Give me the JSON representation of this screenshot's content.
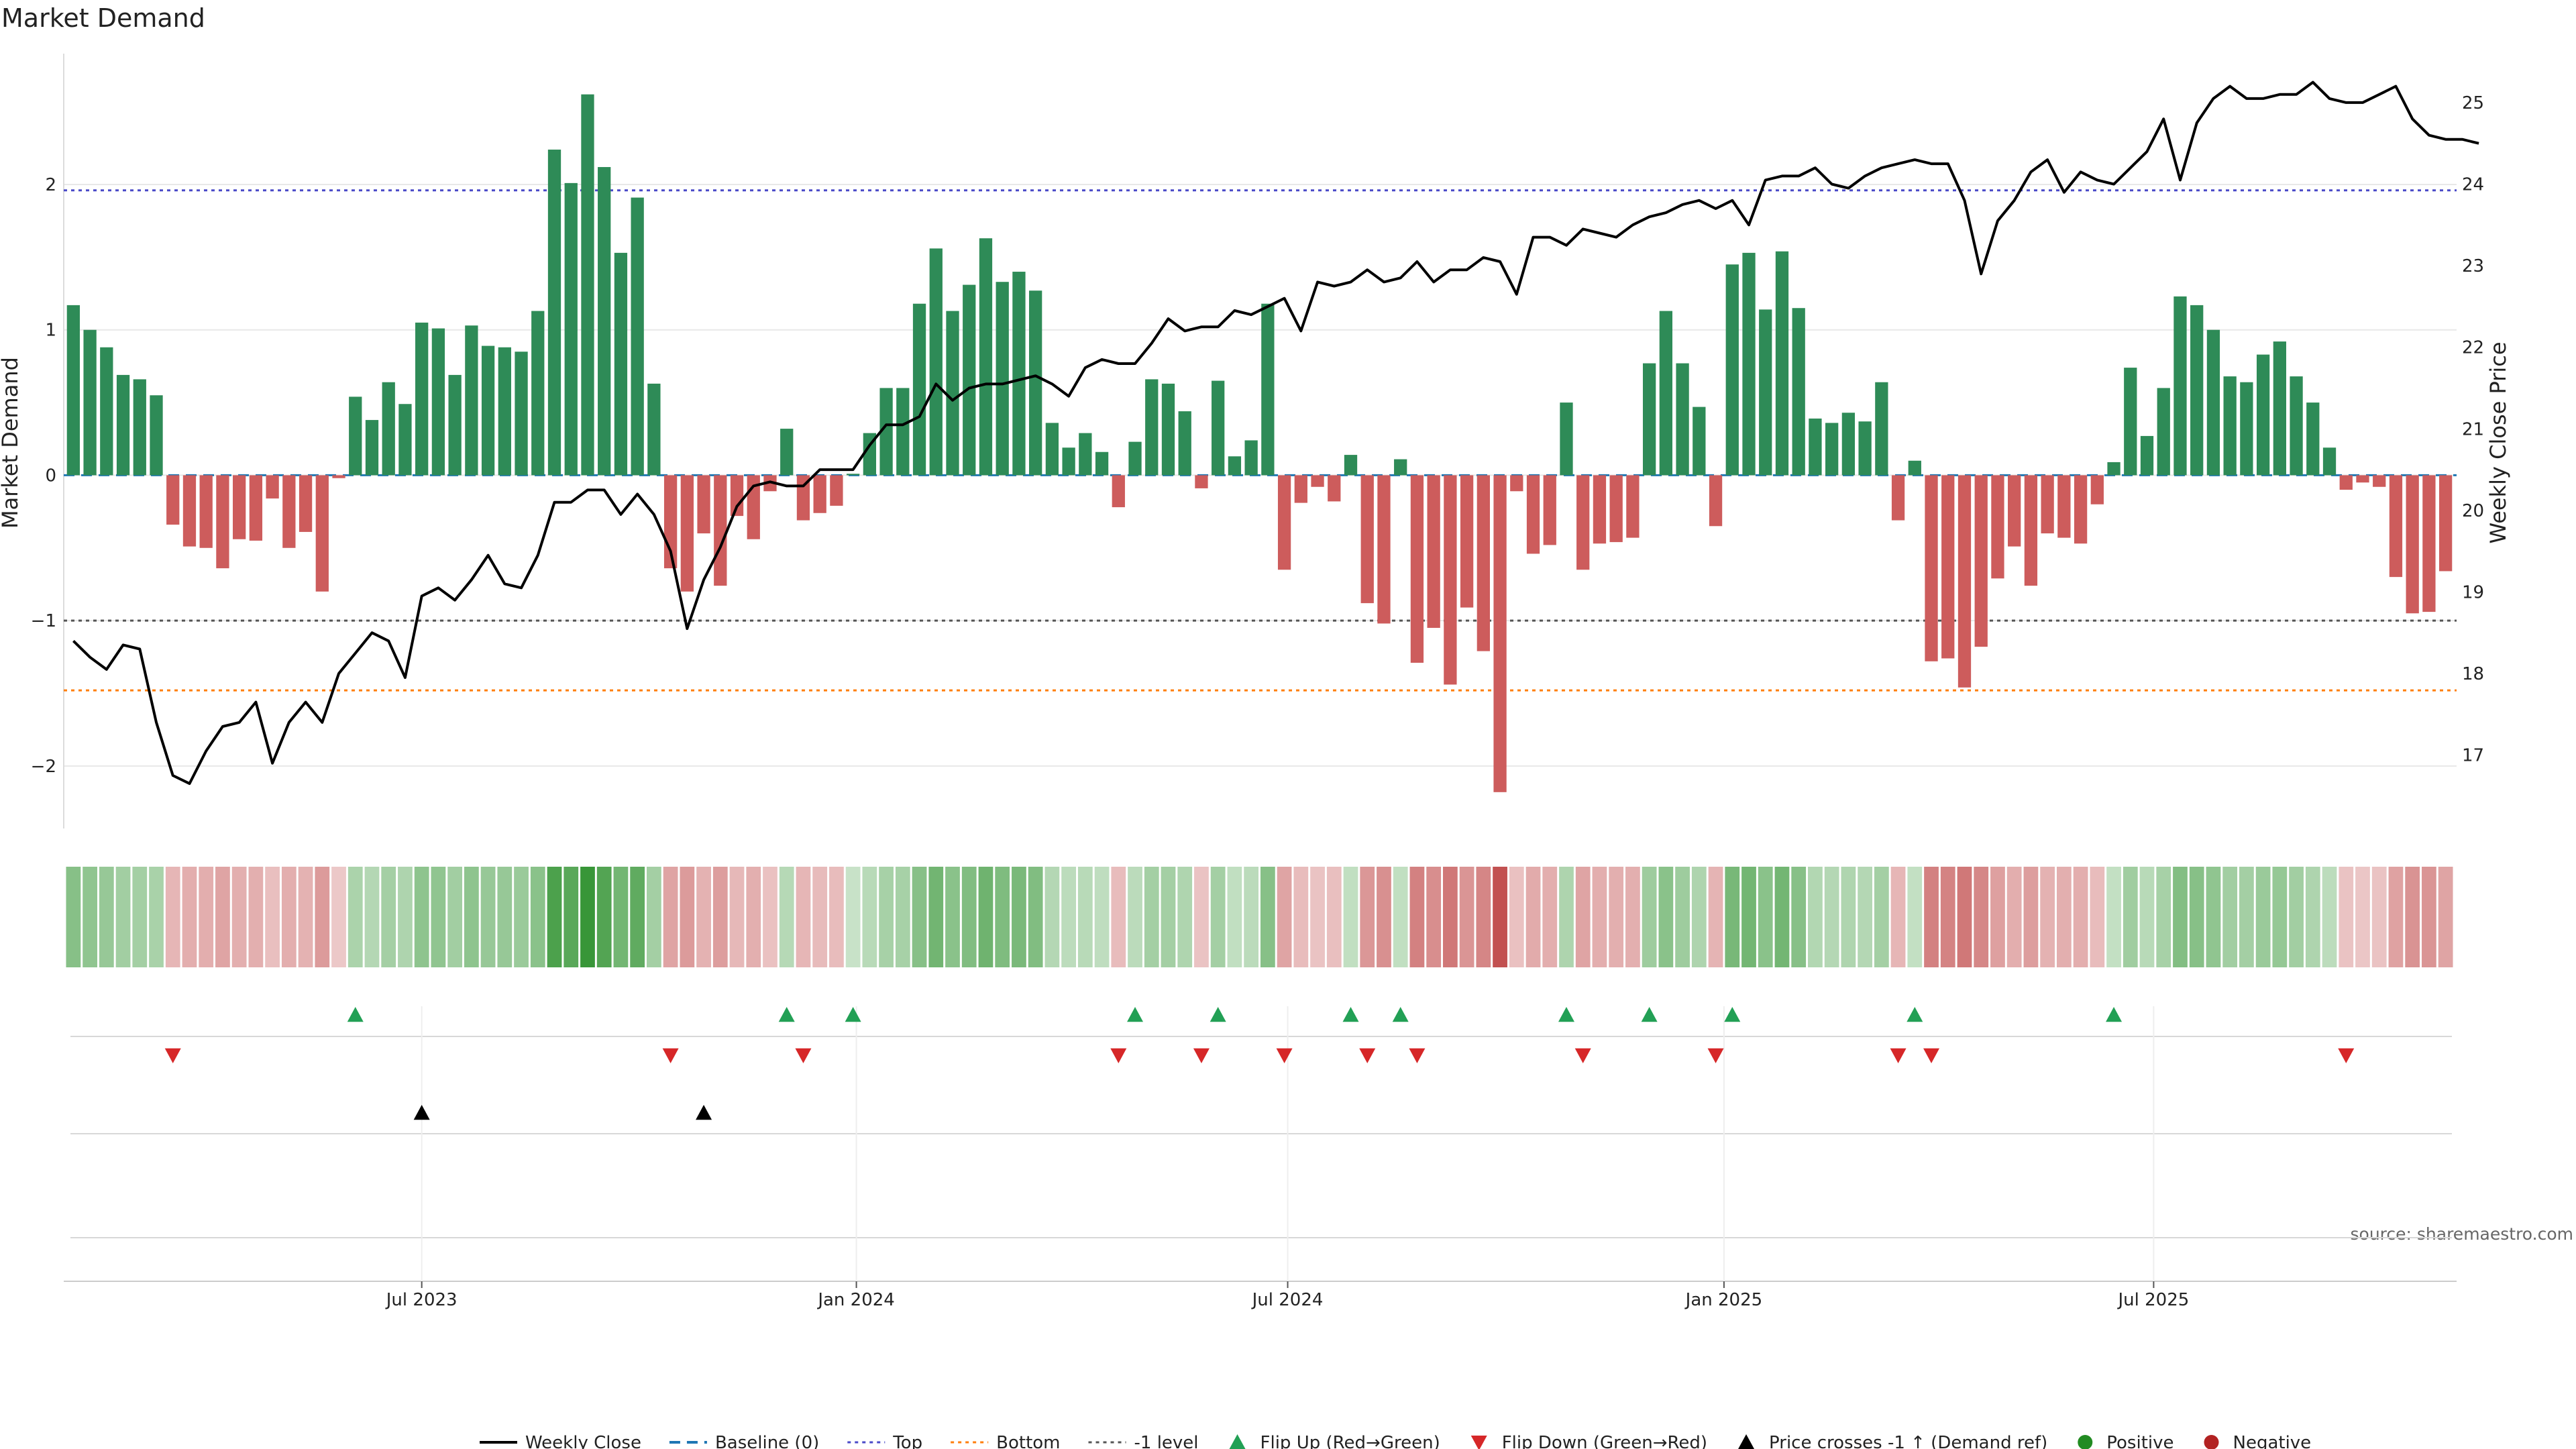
{
  "chart_data": {
    "type": "bar",
    "title": "Market Demand",
    "ylabel_left": "Market Demand",
    "ylabel_right": "Weekly Close Price",
    "source": "source: sharemaestro.com",
    "ylim_left": [
      -2.43,
      2.9
    ],
    "ylim_right": [
      16.1,
      25.6
    ],
    "left_ticks": [
      {
        "v": 2,
        "label": "2"
      },
      {
        "v": 1,
        "label": "1"
      },
      {
        "v": 0,
        "label": "0"
      },
      {
        "v": -1,
        "label": "−1"
      },
      {
        "v": -2,
        "label": "−2"
      }
    ],
    "right_ticks": [
      {
        "v": 25,
        "label": "25"
      },
      {
        "v": 24,
        "label": "24"
      },
      {
        "v": 23,
        "label": "23"
      },
      {
        "v": 22,
        "label": "22"
      },
      {
        "v": 21,
        "label": "21"
      },
      {
        "v": 20,
        "label": "20"
      },
      {
        "v": 19,
        "label": "19"
      },
      {
        "v": 18,
        "label": "18"
      },
      {
        "v": 17,
        "label": "17"
      }
    ],
    "date_ticks": [
      {
        "week": 21.5,
        "label": "Jul 2023"
      },
      {
        "week": 47.7,
        "label": "Jan 2024"
      },
      {
        "week": 73.7,
        "label": "Jul 2024"
      },
      {
        "week": 100,
        "label": "Jan 2025"
      },
      {
        "week": 125.9,
        "label": "Jul 2025"
      }
    ],
    "reference_lines": {
      "top": 1.96,
      "bottom": -1.48,
      "minus_one": -1.0,
      "baseline": 0
    },
    "demand": [
      1.17,
      1.0,
      0.88,
      0.69,
      0.66,
      0.55,
      -0.34,
      -0.49,
      -0.5,
      -0.64,
      -0.44,
      -0.45,
      -0.16,
      -0.5,
      -0.39,
      -0.8,
      -0.02,
      0.54,
      0.38,
      0.64,
      0.49,
      1.05,
      1.01,
      0.69,
      1.03,
      0.89,
      0.88,
      0.85,
      1.13,
      2.24,
      2.01,
      2.62,
      2.12,
      1.53,
      1.91,
      0.63,
      -0.64,
      -0.8,
      -0.4,
      -0.76,
      -0.28,
      -0.44,
      -0.11,
      0.32,
      -0.31,
      -0.26,
      -0.21,
      0.01,
      0.29,
      0.6,
      0.6,
      1.18,
      1.56,
      1.13,
      1.31,
      1.63,
      1.33,
      1.4,
      1.27,
      0.36,
      0.19,
      0.29,
      0.16,
      -0.22,
      0.23,
      0.66,
      0.63,
      0.44,
      -0.09,
      0.65,
      0.13,
      0.24,
      1.18,
      -0.65,
      -0.19,
      -0.08,
      -0.18,
      0.14,
      -0.88,
      -1.02,
      0.11,
      -1.29,
      -1.05,
      -1.44,
      -0.91,
      -1.21,
      -2.18,
      -0.11,
      -0.54,
      -0.48,
      0.5,
      -0.65,
      -0.47,
      -0.46,
      -0.43,
      0.77,
      1.13,
      0.77,
      0.47,
      -0.35,
      1.45,
      1.53,
      1.14,
      1.54,
      1.15,
      0.39,
      0.36,
      0.43,
      0.37,
      0.64,
      -0.31,
      0.1,
      -1.28,
      -1.26,
      -1.46,
      -1.18,
      -0.71,
      -0.49,
      -0.76,
      -0.4,
      -0.43,
      -0.47,
      -0.2,
      0.09,
      0.74,
      0.27,
      0.6,
      1.23,
      1.17,
      1.0,
      0.68,
      0.64,
      0.83,
      0.92,
      0.68,
      0.5,
      0.19,
      -0.1,
      -0.05,
      -0.08,
      -0.7,
      -0.95,
      -0.94,
      -0.66
    ],
    "close": [
      18.4,
      18.2,
      18.05,
      18.35,
      18.3,
      17.4,
      16.75,
      16.65,
      17.05,
      17.35,
      17.4,
      17.65,
      16.9,
      17.4,
      17.65,
      17.4,
      18.0,
      18.25,
      18.5,
      18.4,
      17.95,
      18.95,
      19.05,
      18.9,
      19.15,
      19.45,
      19.1,
      19.05,
      19.45,
      20.1,
      20.1,
      20.25,
      20.25,
      19.95,
      20.2,
      19.95,
      19.5,
      18.55,
      19.15,
      19.55,
      20.05,
      20.3,
      20.35,
      20.3,
      20.3,
      20.5,
      20.5,
      20.5,
      20.8,
      21.05,
      21.05,
      21.15,
      21.55,
      21.35,
      21.5,
      21.55,
      21.55,
      21.6,
      21.65,
      21.55,
      21.4,
      21.75,
      21.85,
      21.8,
      21.8,
      22.05,
      22.35,
      22.2,
      22.25,
      22.25,
      22.45,
      22.4,
      22.5,
      22.6,
      22.2,
      22.8,
      22.75,
      22.8,
      22.95,
      22.8,
      22.85,
      23.05,
      22.8,
      22.95,
      22.95,
      23.1,
      23.05,
      22.65,
      23.35,
      23.35,
      23.25,
      23.45,
      23.4,
      23.35,
      23.5,
      23.6,
      23.65,
      23.75,
      23.8,
      23.7,
      23.8,
      23.5,
      24.05,
      24.1,
      24.1,
      24.2,
      24.0,
      23.95,
      24.1,
      24.2,
      24.25,
      24.3,
      24.25,
      24.25,
      23.8,
      22.9,
      23.55,
      23.8,
      24.15,
      24.3,
      23.9,
      24.15,
      24.05,
      24.0,
      24.2,
      24.4,
      24.8,
      24.05,
      24.75,
      25.05,
      25.2,
      25.05,
      25.05,
      25.1,
      25.1,
      25.25,
      25.05,
      25.0,
      25.0,
      25.1,
      25.2,
      24.8,
      24.6,
      24.55,
      24.55,
      24.5
    ],
    "flip_up_weeks": [
      17,
      43,
      47,
      64,
      69,
      77,
      80,
      90,
      95,
      100,
      111,
      123
    ],
    "flip_down_weeks": [
      6,
      36,
      44,
      63,
      68,
      73,
      78,
      81,
      91,
      99,
      110,
      112,
      137
    ],
    "price_cross_weeks": [
      21,
      38
    ],
    "colors": {
      "positive": "#2e8b57",
      "negative": "#cd5c5c",
      "close_line": "#000000",
      "baseline": "#1f77b4",
      "top": "#4a4ac8",
      "bottom": "#ff7f0e",
      "minus_one": "#555555",
      "flip_up": "#22a055",
      "flip_down": "#d62728",
      "price_cross": "#000000",
      "positive_dot": "#228b22",
      "negative_dot": "#b22222"
    },
    "legend": [
      {
        "label": "Weekly Close",
        "kind": "line"
      },
      {
        "label": "Baseline (0)",
        "kind": "dash"
      },
      {
        "label": "Top",
        "kind": "dot-top"
      },
      {
        "label": "Bottom",
        "kind": "dot-bottom"
      },
      {
        "label": "-1 level",
        "kind": "dot-minus"
      },
      {
        "label": "Flip Up (Red→Green)",
        "kind": "tri-up"
      },
      {
        "label": "Flip Down (Green→Red)",
        "kind": "tri-down"
      },
      {
        "label": "Price crosses -1 ↑ (Demand ref)",
        "kind": "tri-black"
      },
      {
        "label": "Positive",
        "kind": "dot-pos"
      },
      {
        "label": "Negative",
        "kind": "dot-neg"
      }
    ]
  }
}
